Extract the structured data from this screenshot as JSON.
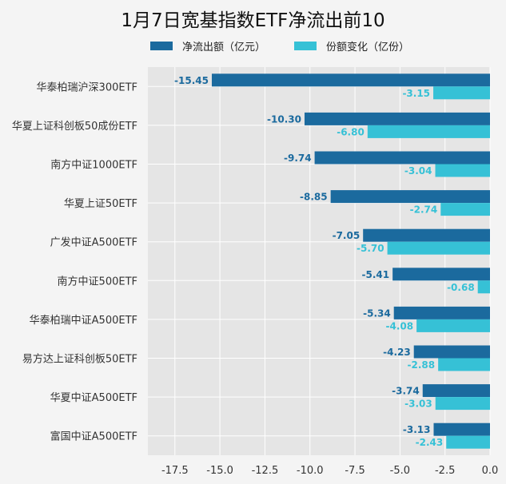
{
  "chart_data": {
    "type": "bar",
    "title": "1月7日宽基指数ETF净流出前10",
    "categories": [
      "华泰柏瑞沪深300ETF",
      "华夏上证科创板50成份ETF",
      "南方中证1000ETF",
      "华夏上证50ETF",
      "广发中证A500ETF",
      "南方中证500ETF",
      "华泰柏瑞中证A500ETF",
      "易方达上证科创板50ETF",
      "华夏中证A500ETF",
      "富国中证A500ETF"
    ],
    "series": [
      {
        "name": "净流出额（亿元）",
        "color": "#1b6a9e",
        "values": [
          -15.45,
          -10.3,
          -9.74,
          -8.85,
          -7.05,
          -5.41,
          -5.34,
          -4.23,
          -3.74,
          -3.13
        ],
        "labels": [
          "-15.45",
          "-10.30",
          "-9.74",
          "-8.85",
          "-7.05",
          "-5.41",
          "-5.34",
          "-4.23",
          "-3.74",
          "-3.13"
        ]
      },
      {
        "name": "份额变化（亿份）",
        "color": "#36c1d6",
        "values": [
          -3.15,
          -6.8,
          -3.04,
          -2.74,
          -5.7,
          -0.68,
          -4.08,
          -2.88,
          -3.03,
          -2.43
        ],
        "labels": [
          "-3.15",
          "-6.80",
          "-3.04",
          "-2.74",
          "-5.70",
          "-0.68",
          "-4.08",
          "-2.88",
          "-3.03",
          "-2.43"
        ]
      }
    ],
    "xlim": [
      -19.0,
      0.0
    ],
    "xticks": [
      -17.5,
      -15.0,
      -12.5,
      -10.0,
      -7.5,
      -5.0,
      -2.5,
      0.0
    ],
    "xtick_labels": [
      "-17.5",
      "-15.0",
      "-12.5",
      "-10.0",
      "-7.5",
      "-5.0",
      "-2.5",
      "0.0"
    ],
    "grid": true,
    "legend": "top"
  }
}
